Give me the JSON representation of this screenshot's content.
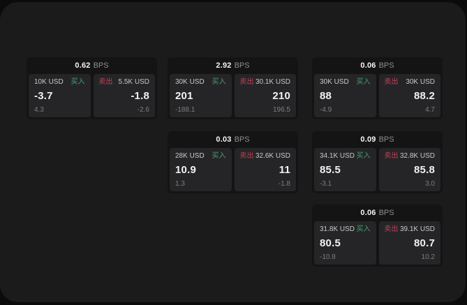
{
  "app": {
    "background_color": "#0b0b0c",
    "panel_color": "#1b1b1c",
    "card_header_color": "#141415",
    "cell_color": "#252528"
  },
  "labels": {
    "bps_unit": "BPS",
    "buy": "买入",
    "sell": "卖出"
  },
  "colors": {
    "buy_accent": "#43a169",
    "sell_accent": "#bf4257",
    "value_text": "#f2f2f2",
    "amount_text": "#c9c9c9",
    "muted_text": "#7d7d7d"
  },
  "cards": [
    {
      "bps": "0.62",
      "col": 0,
      "row": 0,
      "buy": {
        "amount": "10K USD",
        "price": "-3.7",
        "change": "4.3"
      },
      "sell": {
        "amount": "5.5K USD",
        "price": "-1.8",
        "change": "-2.6"
      }
    },
    {
      "bps": "2.92",
      "col": 1,
      "row": 0,
      "buy": {
        "amount": "30K USD",
        "price": "201",
        "change": "-188.1"
      },
      "sell": {
        "amount": "30.1K USD",
        "price": "210",
        "change": "196.5"
      }
    },
    {
      "bps": "0.06",
      "col": 2,
      "row": 0,
      "buy": {
        "amount": "30K USD",
        "price": "88",
        "change": "-4.9"
      },
      "sell": {
        "amount": "30K USD",
        "price": "88.2",
        "change": "4.7"
      }
    },
    {
      "bps": "0.03",
      "col": 1,
      "row": 1,
      "buy": {
        "amount": "28K USD",
        "price": "10.9",
        "change": "1.3"
      },
      "sell": {
        "amount": "32.6K USD",
        "price": "11",
        "change": "-1.8"
      }
    },
    {
      "bps": "0.09",
      "col": 2,
      "row": 1,
      "buy": {
        "amount": "34.1K USD",
        "price": "85.5",
        "change": "-3.1"
      },
      "sell": {
        "amount": "32.8K USD",
        "price": "85.8",
        "change": "3.0"
      }
    },
    {
      "bps": "0.06",
      "col": 2,
      "row": 2,
      "buy": {
        "amount": "31.8K USD",
        "price": "80.5",
        "change": "-10.8"
      },
      "sell": {
        "amount": "39.1K USD",
        "price": "80.7",
        "change": "10.2"
      }
    }
  ]
}
